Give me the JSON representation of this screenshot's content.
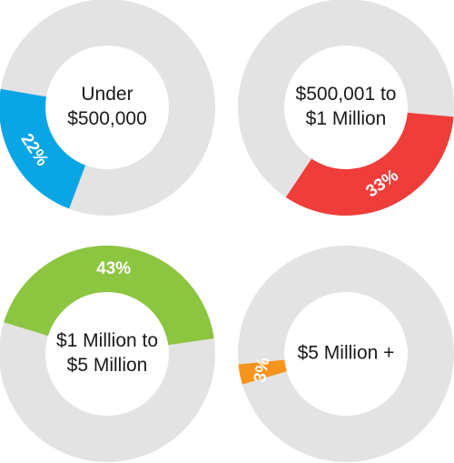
{
  "chart_data": {
    "type": "pie",
    "track_color": "#e3e3e3",
    "charts": [
      {
        "label_lines": [
          "Under",
          "$500,000"
        ],
        "value": 22,
        "value_label": "22%",
        "color": "#0aa5e5"
      },
      {
        "label_lines": [
          "$500,001 to",
          "$1 Million"
        ],
        "value": 33,
        "value_label": "33%",
        "color": "#ef3d3a"
      },
      {
        "label_lines": [
          "$1 Million to",
          "$5 Million"
        ],
        "value": 43,
        "value_label": "43%",
        "color": "#8cc540"
      },
      {
        "label_lines": [
          "$5 Million +"
        ],
        "value": 3,
        "value_label": "3%",
        "color": "#f7941d"
      }
    ]
  }
}
